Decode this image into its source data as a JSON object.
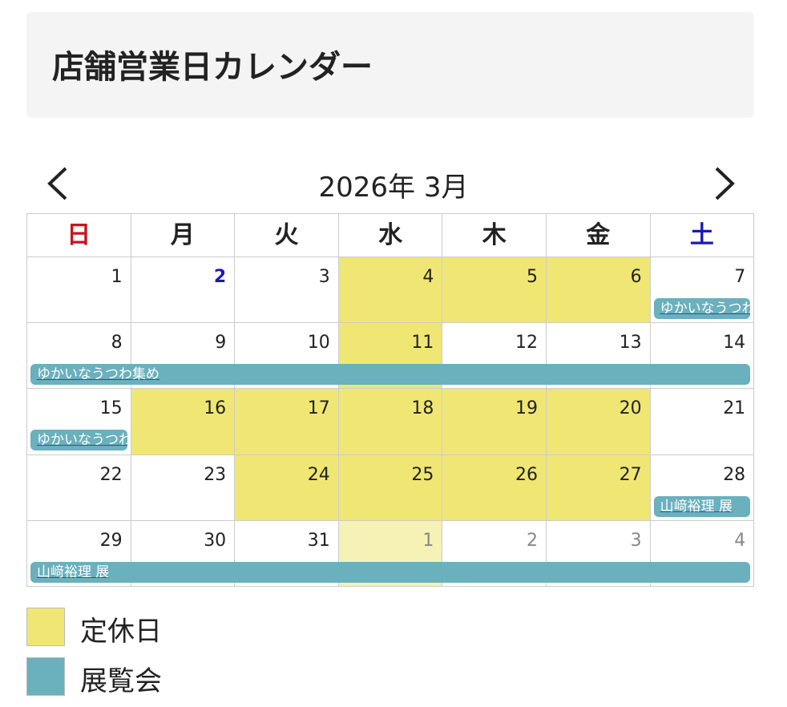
{
  "header": {
    "title": "店舗営業日カレンダー"
  },
  "calendar": {
    "month_label": "2026年 3月",
    "weekdays": [
      "日",
      "月",
      "火",
      "水",
      "木",
      "金",
      "土"
    ],
    "weeks": [
      [
        {
          "day": "1"
        },
        {
          "day": "2",
          "today": true
        },
        {
          "day": "3"
        },
        {
          "day": "4",
          "closed": true
        },
        {
          "day": "5",
          "closed": true
        },
        {
          "day": "6",
          "closed": true
        },
        {
          "day": "7",
          "event": "ゆかいなうつわ集め"
        }
      ],
      [
        {
          "day": "8",
          "event": "ゆかいなうつわ集め"
        },
        {
          "day": "9",
          "event": "ゆかいなうつわ集め"
        },
        {
          "day": "10",
          "event": "ゆかいなうつわ集め"
        },
        {
          "day": "11",
          "closed": true,
          "event": "ゆかいなうつわ集め"
        },
        {
          "day": "12",
          "event": "ゆかいなうつわ集め"
        },
        {
          "day": "13",
          "event": "ゆかいなうつわ集め"
        },
        {
          "day": "14",
          "event": "ゆかいなうつわ集め"
        }
      ],
      [
        {
          "day": "15",
          "event": "ゆかいなうつわ集め"
        },
        {
          "day": "16",
          "closed": true
        },
        {
          "day": "17",
          "closed": true
        },
        {
          "day": "18",
          "closed": true
        },
        {
          "day": "19",
          "closed": true
        },
        {
          "day": "20",
          "closed": true
        },
        {
          "day": "21"
        }
      ],
      [
        {
          "day": "22"
        },
        {
          "day": "23"
        },
        {
          "day": "24",
          "closed": true
        },
        {
          "day": "25",
          "closed": true
        },
        {
          "day": "26",
          "closed": true
        },
        {
          "day": "27",
          "closed": true
        },
        {
          "day": "28",
          "event": "山﨑裕理 展"
        }
      ],
      [
        {
          "day": "29",
          "event": "山﨑裕理 展"
        },
        {
          "day": "30",
          "event": "山﨑裕理 展"
        },
        {
          "day": "31",
          "event": "山﨑裕理 展"
        },
        {
          "day": "1",
          "closed": true,
          "other_month": true,
          "event": "山﨑裕理 展"
        },
        {
          "day": "2",
          "other_month": true,
          "event": "山﨑裕理 展"
        },
        {
          "day": "3",
          "other_month": true,
          "event": "山﨑裕理 展"
        },
        {
          "day": "4",
          "other_month": true,
          "event": "山﨑裕理 展"
        }
      ]
    ]
  },
  "legend": [
    {
      "label": "定休日",
      "color": "#f0e674"
    },
    {
      "label": "展覧会",
      "color": "#6ab0bd"
    }
  ]
}
